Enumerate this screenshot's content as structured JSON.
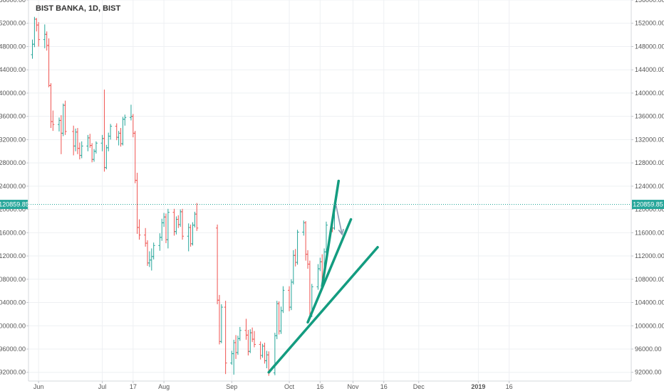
{
  "chart_data": {
    "type": "ohlc",
    "title": "BIST BANKA, 1D, BIST",
    "last_price_label": "120859.85",
    "last_price": 120859.85,
    "ylim": [
      90500,
      156000
    ],
    "y_ticks": [
      {
        "value": 92000,
        "label": "92000.00"
      },
      {
        "value": 96000,
        "label": "96000.00"
      },
      {
        "value": 100000,
        "label": "100000.00"
      },
      {
        "value": 104000,
        "label": "104000.00"
      },
      {
        "value": 108000,
        "label": "108000.00"
      },
      {
        "value": 112000,
        "label": "112000.00"
      },
      {
        "value": 116000,
        "label": "116000.00"
      },
      {
        "value": 120000,
        "label": "120000.00"
      },
      {
        "value": 124000,
        "label": "124000.00"
      },
      {
        "value": 128000,
        "label": "128000.00"
      },
      {
        "value": 132000,
        "label": "132000.00"
      },
      {
        "value": 136000,
        "label": "136000.00"
      },
      {
        "value": 140000,
        "label": "140000.00"
      },
      {
        "value": 144000,
        "label": "144000.00"
      },
      {
        "value": 148000,
        "label": "148000.00"
      },
      {
        "value": 152000,
        "label": "152000.00"
      },
      {
        "value": 156000,
        "label": "156000.00"
      }
    ],
    "x_ticks": [
      {
        "date": "2018-06-01",
        "label": "Jun"
      },
      {
        "date": "2018-07-02",
        "label": "Jul"
      },
      {
        "date": "2018-07-17",
        "label": "17"
      },
      {
        "date": "2018-08-01",
        "label": "Aug"
      },
      {
        "date": "2018-09-03",
        "label": "Sep"
      },
      {
        "date": "2018-10-01",
        "label": "Oct"
      },
      {
        "date": "2018-10-16",
        "label": "16"
      },
      {
        "date": "2018-11-01",
        "label": "Nov"
      },
      {
        "date": "2018-11-16",
        "label": "16"
      },
      {
        "date": "2018-12-03",
        "label": "Dec"
      },
      {
        "date": "2019-01-01",
        "label": "2019"
      },
      {
        "date": "2019-01-16",
        "label": "16"
      }
    ],
    "colors": {
      "up": "#26a69a",
      "down": "#ef5350",
      "trend": "#139c80",
      "arrow": "#8b9bb4",
      "grid": "#eef0f3"
    },
    "bars": [
      [
        "2018-05-29",
        146600,
        149200,
        145900,
        148400
      ],
      [
        "2018-05-30",
        148400,
        153100,
        147900,
        152700
      ],
      [
        "2018-05-31",
        152700,
        152900,
        150600,
        151700
      ],
      [
        "2018-06-01",
        151700,
        152200,
        148000,
        149200
      ],
      [
        "2018-06-04",
        149200,
        151800,
        147700,
        150100
      ],
      [
        "2018-06-05",
        150100,
        150600,
        147300,
        148200
      ],
      [
        "2018-06-06",
        148200,
        149400,
        141000,
        141300
      ],
      [
        "2018-06-07",
        141300,
        141700,
        134000,
        135100
      ],
      [
        "2018-06-08",
        135100,
        137000,
        133500,
        134600
      ],
      [
        "2018-06-11",
        134600,
        135800,
        133400,
        135300
      ],
      [
        "2018-06-12",
        135300,
        136200,
        129500,
        133100
      ],
      [
        "2018-06-13",
        133100,
        138200,
        132600,
        137900
      ],
      [
        "2018-06-14",
        137900,
        138700,
        132800,
        133400
      ],
      [
        "2018-06-18",
        133400,
        134400,
        129300,
        130900
      ],
      [
        "2018-06-19",
        130900,
        133900,
        130000,
        133300
      ],
      [
        "2018-06-20",
        133300,
        134000,
        129500,
        130500
      ],
      [
        "2018-06-21",
        130500,
        131500,
        128600,
        129300
      ],
      [
        "2018-06-22",
        129300,
        131700,
        128800,
        130900
      ],
      [
        "2018-06-25",
        130900,
        132800,
        130000,
        132300
      ],
      [
        "2018-06-26",
        132300,
        133000,
        130600,
        131000
      ],
      [
        "2018-06-27",
        131000,
        131400,
        128100,
        128600
      ],
      [
        "2018-06-28",
        128600,
        130400,
        128200,
        130000
      ],
      [
        "2018-06-29",
        130000,
        131700,
        129600,
        131400
      ],
      [
        "2018-07-02",
        131400,
        132800,
        130000,
        132200
      ],
      [
        "2018-07-03",
        132200,
        140600,
        126500,
        127200
      ],
      [
        "2018-07-04",
        127200,
        131100,
        126900,
        130600
      ],
      [
        "2018-07-05",
        130600,
        133200,
        130000,
        132600
      ],
      [
        "2018-07-06",
        132600,
        134700,
        132000,
        134300
      ],
      [
        "2018-07-09",
        134300,
        134800,
        131900,
        132400
      ],
      [
        "2018-07-10",
        132400,
        133500,
        131000,
        133100
      ],
      [
        "2018-07-11",
        133100,
        134000,
        130800,
        131300
      ],
      [
        "2018-07-12",
        131300,
        135900,
        131000,
        135500
      ],
      [
        "2018-07-13",
        135500,
        136300,
        134400,
        135800
      ],
      [
        "2018-07-16",
        135800,
        138000,
        135300,
        136000
      ],
      [
        "2018-07-17",
        136000,
        136400,
        132400,
        133100
      ],
      [
        "2018-07-18",
        133100,
        133500,
        124500,
        125000
      ],
      [
        "2018-07-19",
        125000,
        126300,
        115800,
        116900
      ],
      [
        "2018-07-20",
        116900,
        118300,
        114800,
        115600
      ],
      [
        "2018-07-23",
        115600,
        116800,
        113600,
        114200
      ],
      [
        "2018-07-24",
        114200,
        114700,
        110300,
        110800
      ],
      [
        "2018-07-25",
        110800,
        112800,
        110100,
        111300
      ],
      [
        "2018-07-26",
        111300,
        113300,
        109500,
        111900
      ],
      [
        "2018-07-27",
        111900,
        114300,
        111400,
        113800
      ],
      [
        "2018-07-30",
        113800,
        115900,
        112900,
        115200
      ],
      [
        "2018-07-31",
        115200,
        118400,
        114600,
        117700
      ],
      [
        "2018-08-01",
        117700,
        119400,
        117000,
        118700
      ],
      [
        "2018-08-02",
        118700,
        119300,
        114200,
        114800
      ],
      [
        "2018-08-03",
        114800,
        120100,
        113300,
        119500
      ],
      [
        "2018-08-06",
        119500,
        120100,
        115500,
        116200
      ],
      [
        "2018-08-07",
        116200,
        118800,
        115700,
        118300
      ],
      [
        "2018-08-08",
        118300,
        119000,
        116800,
        117400
      ],
      [
        "2018-08-09",
        117400,
        120000,
        117000,
        119600
      ],
      [
        "2018-08-10",
        119600,
        120100,
        114800,
        115400
      ],
      [
        "2018-08-13",
        115400,
        117600,
        112800,
        116900
      ],
      [
        "2018-08-14",
        116900,
        117400,
        113600,
        114100
      ],
      [
        "2018-08-15",
        114100,
        117800,
        113800,
        117300
      ],
      [
        "2018-08-16",
        117300,
        119600,
        116900,
        119200
      ],
      [
        "2018-08-17",
        119200,
        121100,
        116300,
        116800
      ],
      [
        "2018-08-27",
        116800,
        117400,
        103700,
        104400
      ],
      [
        "2018-08-28",
        104400,
        105300,
        96800,
        97300
      ],
      [
        "2018-08-29",
        97300,
        103700,
        97000,
        103200
      ],
      [
        "2018-08-31",
        103200,
        104300,
        91700,
        93600
      ],
      [
        "2018-09-03",
        93600,
        95700,
        93300,
        95200
      ],
      [
        "2018-09-04",
        95200,
        97600,
        91600,
        97100
      ],
      [
        "2018-09-05",
        97100,
        98400,
        94300,
        95400
      ],
      [
        "2018-09-06",
        95400,
        98300,
        95000,
        97800
      ],
      [
        "2018-09-07",
        97800,
        99800,
        97400,
        99200
      ],
      [
        "2018-09-10",
        99200,
        101200,
        97600,
        98400
      ],
      [
        "2018-09-11",
        98400,
        99300,
        94900,
        95600
      ],
      [
        "2018-09-12",
        95600,
        99400,
        95300,
        98800
      ],
      [
        "2018-09-13",
        98800,
        99700,
        97200,
        97700
      ],
      [
        "2018-09-14",
        97700,
        99100,
        96300,
        96800
      ],
      [
        "2018-09-17",
        96800,
        97300,
        94200,
        94900
      ],
      [
        "2018-09-18",
        94900,
        96900,
        94500,
        96500
      ],
      [
        "2018-09-19",
        96500,
        97100,
        93500,
        94000
      ],
      [
        "2018-09-20",
        94000,
        95700,
        92700,
        95000
      ],
      [
        "2018-09-21",
        95000,
        95600,
        91400,
        91900
      ],
      [
        "2018-09-24",
        91900,
        98800,
        91500,
        98300
      ],
      [
        "2018-09-25",
        98300,
        104300,
        97700,
        103800
      ],
      [
        "2018-09-26",
        103800,
        104200,
        98500,
        99100
      ],
      [
        "2018-09-27",
        99100,
        103300,
        98600,
        102600
      ],
      [
        "2018-09-28",
        102600,
        106800,
        102200,
        106100
      ],
      [
        "2018-10-01",
        106100,
        106800,
        102500,
        103200
      ],
      [
        "2018-10-02",
        103200,
        108000,
        102700,
        107500
      ],
      [
        "2018-10-03",
        107500,
        113000,
        107100,
        112100
      ],
      [
        "2018-10-04",
        112100,
        113200,
        110200,
        110900
      ],
      [
        "2018-10-05",
        110900,
        116500,
        110500,
        116100
      ],
      [
        "2018-10-08",
        116100,
        118100,
        115500,
        117700
      ],
      [
        "2018-10-09",
        117700,
        118000,
        111200,
        112300
      ],
      [
        "2018-10-10",
        112300,
        113000,
        109800,
        110600
      ],
      [
        "2018-10-11",
        110600,
        111200,
        101300,
        101900
      ],
      [
        "2018-10-12",
        101900,
        107200,
        101500,
        106700
      ],
      [
        "2018-10-15",
        106700,
        110600,
        106200,
        109800
      ],
      [
        "2018-10-16",
        109800,
        111700,
        109400,
        111000
      ],
      [
        "2018-10-17",
        111000,
        112300,
        106900,
        107700
      ],
      [
        "2018-10-18",
        107700,
        113300,
        107300,
        112700
      ],
      [
        "2018-10-19",
        112700,
        117900,
        112300,
        117300
      ],
      [
        "2018-10-22",
        117300,
        118400,
        116100,
        116800
      ],
      [
        "2018-10-23",
        116800,
        121000,
        116500,
        120860
      ]
    ],
    "trendlines": [
      {
        "from": [
          "2018-09-21",
          92000
        ],
        "to": [
          "2018-11-13",
          113500
        ]
      },
      {
        "from": [
          "2018-10-10",
          100600
        ],
        "to": [
          "2018-10-31",
          118300
        ]
      },
      {
        "from": [
          "2018-10-17",
          106800
        ],
        "to": [
          "2018-10-25",
          124900
        ]
      }
    ],
    "arrow": {
      "from": [
        "2018-10-23",
        120800
      ],
      "to": [
        "2018-10-26",
        115700
      ]
    }
  }
}
